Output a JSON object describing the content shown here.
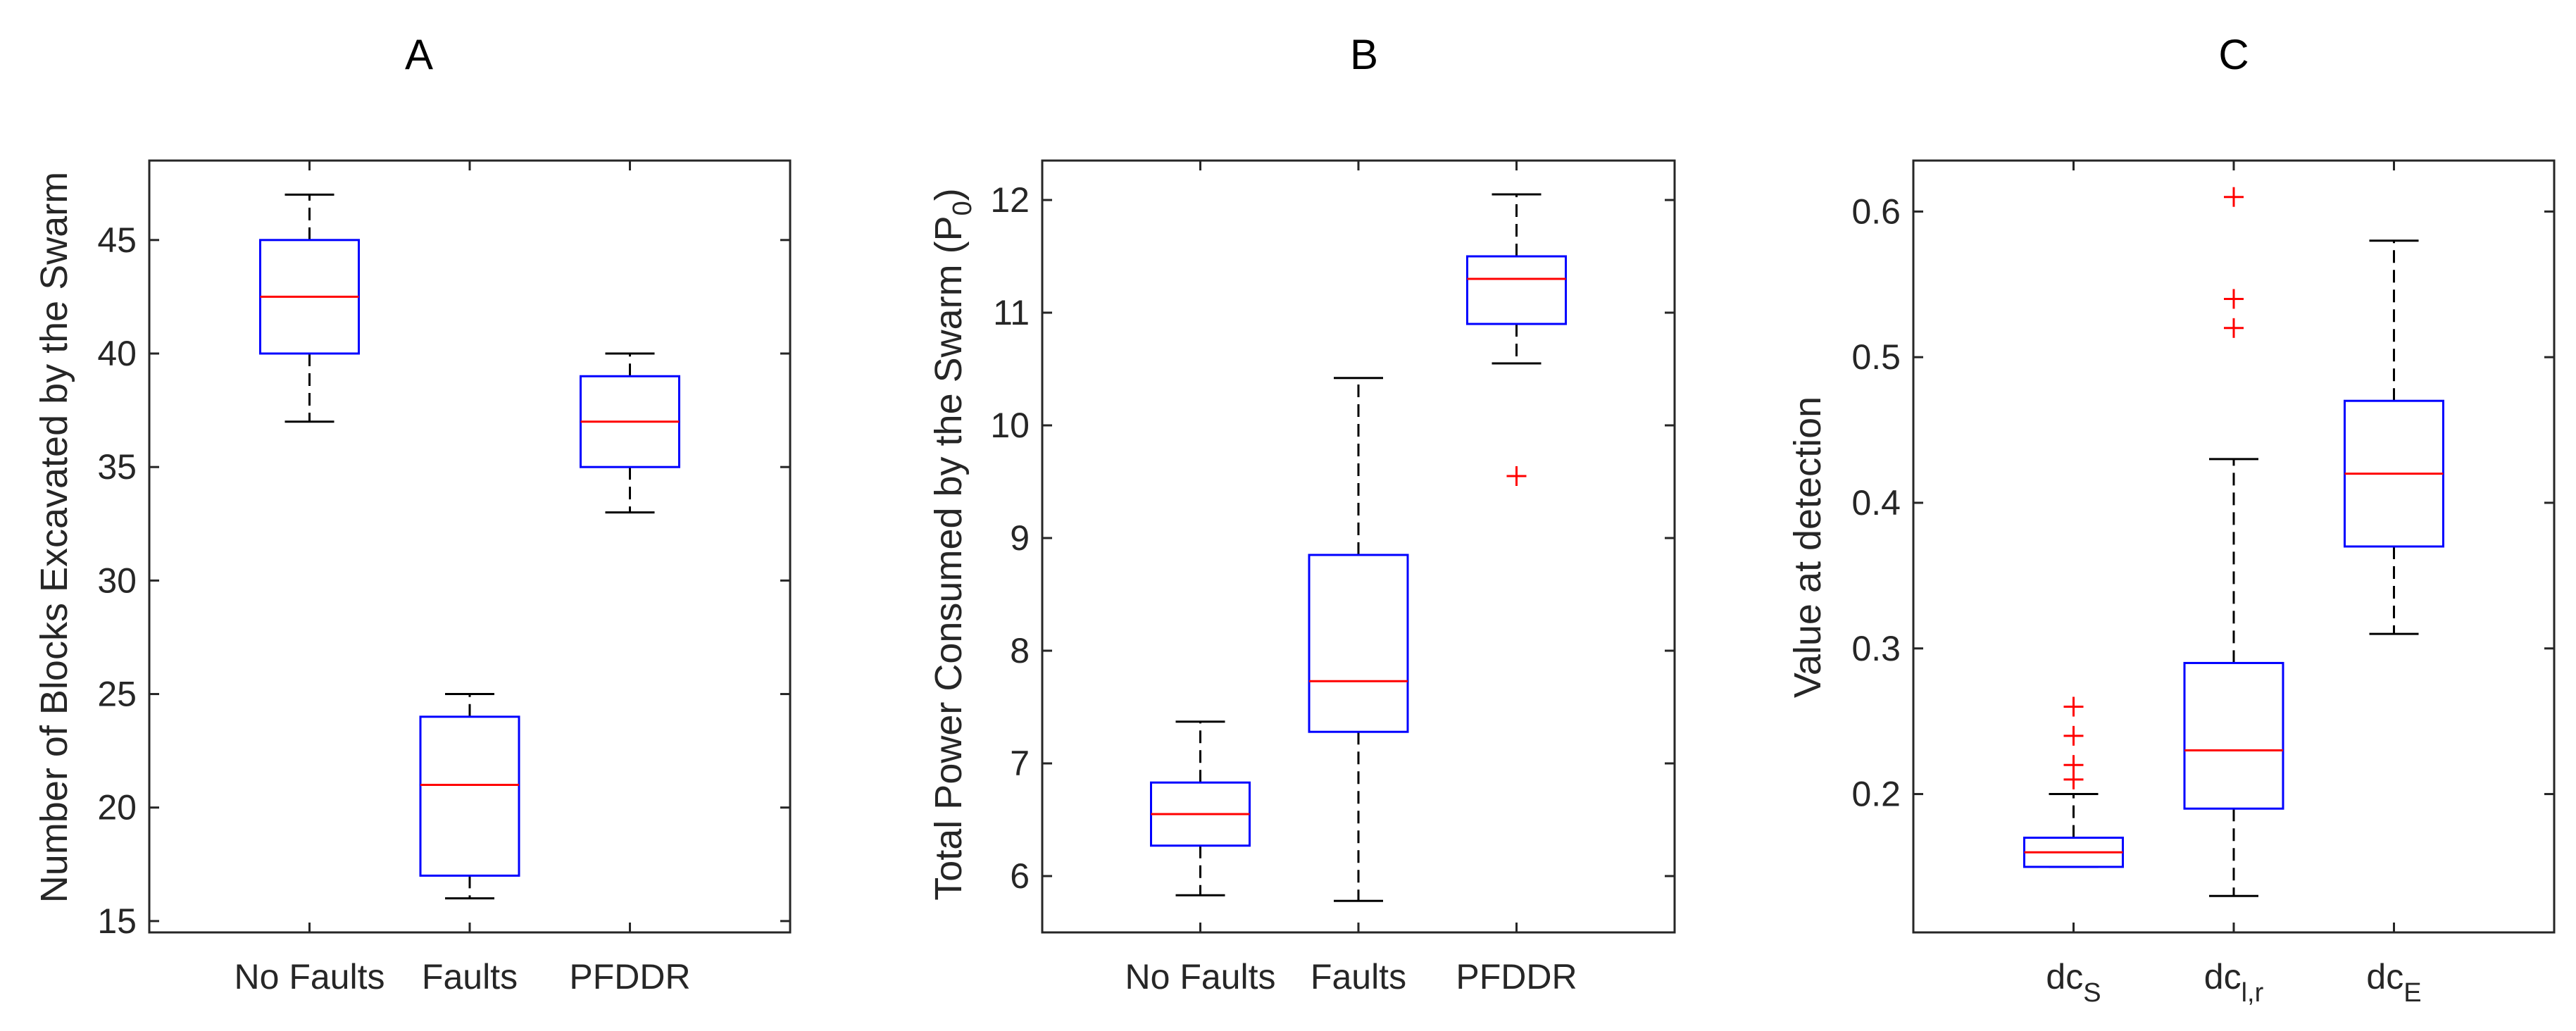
{
  "colors": {
    "box": "#0000FF",
    "median": "#FF0000",
    "whisker": "#000000",
    "outlier": "#FF0000"
  },
  "chart_data": [
    {
      "type": "boxplot",
      "title": "A",
      "xlabel": "",
      "ylabel": "Number of Blocks Excavated by the Swarm",
      "ylim": [
        14.5,
        48.5
      ],
      "yticks": [
        15,
        20,
        25,
        30,
        35,
        40,
        45
      ],
      "legend": "none",
      "grid": false,
      "categories": [
        {
          "label": "No Faults",
          "sub": "",
          "min": 37,
          "q1": 40,
          "median": 42.5,
          "q3": 45,
          "max": 47,
          "outliers": []
        },
        {
          "label": "Faults",
          "sub": "",
          "min": 16,
          "q1": 17,
          "median": 21,
          "q3": 24,
          "max": 25,
          "outliers": []
        },
        {
          "label": "PFDDR",
          "sub": "",
          "min": 33,
          "q1": 35,
          "median": 37,
          "q3": 39,
          "max": 40,
          "outliers": []
        }
      ]
    },
    {
      "type": "boxplot",
      "title": "B",
      "xlabel": "",
      "ylabel": "Total Power Consumed by the Swarm (P",
      "ylabel_sub": "0",
      "ylabel_suffix": ")",
      "ylim": [
        5.5,
        12.35
      ],
      "yticks": [
        6,
        7,
        8,
        9,
        10,
        11,
        12
      ],
      "legend": "none",
      "grid": false,
      "categories": [
        {
          "label": "No Faults",
          "sub": "",
          "min": 5.83,
          "q1": 6.27,
          "median": 6.55,
          "q3": 6.83,
          "max": 7.37,
          "outliers": []
        },
        {
          "label": "Faults",
          "sub": "",
          "min": 5.78,
          "q1": 7.28,
          "median": 7.73,
          "q3": 8.85,
          "max": 10.42,
          "outliers": []
        },
        {
          "label": "PFDDR",
          "sub": "",
          "min": 10.55,
          "q1": 10.9,
          "median": 11.3,
          "q3": 11.5,
          "max": 12.05,
          "outliers": [
            9.55
          ]
        }
      ]
    },
    {
      "type": "boxplot",
      "title": "C",
      "xlabel": "",
      "ylabel": "Value at detection",
      "ylim": [
        0.105,
        0.635
      ],
      "yticks": [
        0.2,
        0.3,
        0.4,
        0.5,
        0.6
      ],
      "legend": "none",
      "grid": false,
      "categories": [
        {
          "label": "dc",
          "sub": "S",
          "min": 0.15,
          "q1": 0.15,
          "median": 0.16,
          "q3": 0.17,
          "max": 0.2,
          "outliers": [
            0.21,
            0.22,
            0.24,
            0.26
          ]
        },
        {
          "label": "dc",
          "sub": "l,r",
          "min": 0.13,
          "q1": 0.19,
          "median": 0.23,
          "q3": 0.29,
          "max": 0.43,
          "outliers": [
            0.52,
            0.54,
            0.61
          ]
        },
        {
          "label": "dc",
          "sub": "E",
          "min": 0.31,
          "q1": 0.37,
          "median": 0.42,
          "q3": 0.47,
          "max": 0.58,
          "outliers": []
        }
      ]
    }
  ]
}
